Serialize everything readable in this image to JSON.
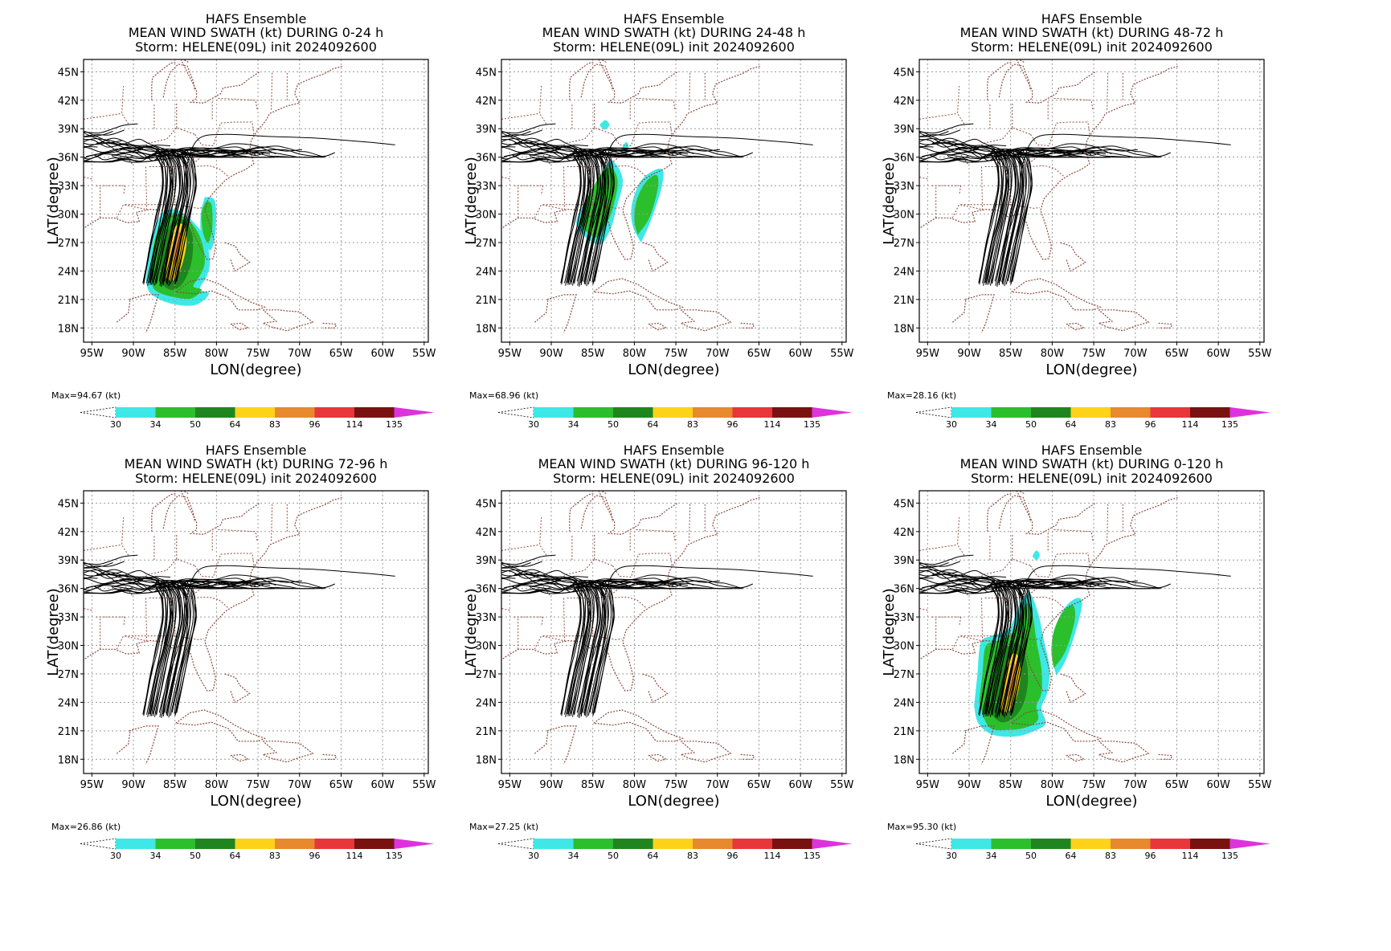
{
  "common": {
    "ylabel": "LAT(degree)",
    "xlabel": "LON(degree)",
    "max_unit": "(kt)",
    "lat_ticks": [
      {
        "v": 45,
        "t": "45N"
      },
      {
        "v": 42,
        "t": "42N"
      },
      {
        "v": 39,
        "t": "39N"
      },
      {
        "v": 36,
        "t": "36N"
      },
      {
        "v": 33,
        "t": "33N"
      },
      {
        "v": 30,
        "t": "30N"
      },
      {
        "v": 27,
        "t": "27N"
      },
      {
        "v": 24,
        "t": "24N"
      },
      {
        "v": 21,
        "t": "21N"
      },
      {
        "v": 18,
        "t": "18N"
      }
    ],
    "lon_ticks": [
      {
        "v": -95,
        "t": "95W"
      },
      {
        "v": -90,
        "t": "90W"
      },
      {
        "v": -85,
        "t": "85W"
      },
      {
        "v": -80,
        "t": "80W"
      },
      {
        "v": -75,
        "t": "75W"
      },
      {
        "v": -70,
        "t": "70W"
      },
      {
        "v": -65,
        "t": "65W"
      },
      {
        "v": -60,
        "t": "60W"
      },
      {
        "v": -55,
        "t": "55W"
      }
    ],
    "lon_range": [
      -96,
      -54.5
    ],
    "lat_range": [
      16.5,
      46.3
    ],
    "colorbar": {
      "levels": [
        "30",
        "34",
        "50",
        "64",
        "83",
        "96",
        "114",
        "135"
      ],
      "colors": [
        "#3ee8e6",
        "#2bbf2c",
        "#1f861f",
        "#ffd21a",
        "#e8892d",
        "#e8363b",
        "#7a1111",
        "#dd33dd"
      ]
    },
    "colors": {
      "grid": "#9a9a9a",
      "border": "#8b4a3c",
      "track": "#000000",
      "axis": "#000000"
    }
  },
  "chart_data": [
    {
      "type": "heatmap",
      "title": "HAFS Ensemble",
      "subtitle": "MEAN WIND SWATH (kt) DURING  0-24 h",
      "storm": "Storm: HELENE(09L) init 2024092600",
      "max_label": "Max=94.67 (kt)",
      "swath": "p1"
    },
    {
      "type": "heatmap",
      "title": "HAFS Ensemble",
      "subtitle": "MEAN WIND SWATH (kt) DURING 24-48 h",
      "storm": "Storm: HELENE(09L) init 2024092600",
      "max_label": "Max=68.96 (kt)",
      "swath": "p2"
    },
    {
      "type": "heatmap",
      "title": "HAFS Ensemble",
      "subtitle": "MEAN WIND SWATH (kt) DURING 48-72 h",
      "storm": "Storm: HELENE(09L) init 2024092600",
      "max_label": "Max=28.16 (kt)",
      "swath": "none"
    },
    {
      "type": "heatmap",
      "title": "HAFS Ensemble",
      "subtitle": "MEAN WIND SWATH (kt) DURING 72-96 h",
      "storm": "Storm: HELENE(09L) init 2024092600",
      "max_label": "Max=26.86 (kt)",
      "swath": "none"
    },
    {
      "type": "heatmap",
      "title": "HAFS Ensemble",
      "subtitle": "MEAN WIND SWATH (kt) DURING 96-120 h",
      "storm": "Storm: HELENE(09L) init 2024092600",
      "max_label": "Max=27.25 (kt)",
      "swath": "none"
    },
    {
      "type": "heatmap",
      "title": "HAFS Ensemble",
      "subtitle": "MEAN WIND SWATH (kt) DURING 0-120 h",
      "storm": "Storm: HELENE(09L) init 2024092600",
      "max_label": "Max=95.30 (kt)",
      "swath": "p6"
    }
  ]
}
